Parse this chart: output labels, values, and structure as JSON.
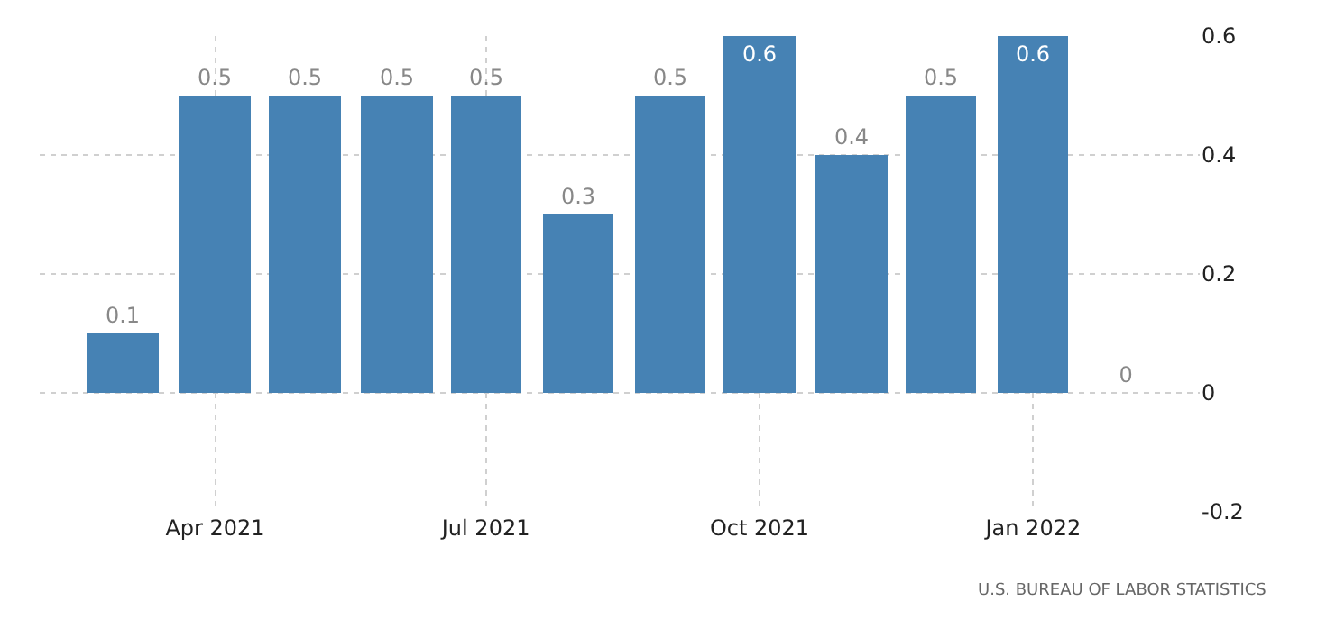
{
  "chart_data": {
    "type": "bar",
    "x": [
      "2021-03-01",
      "2021-04-01",
      "2021-05-01",
      "2021-06-01",
      "2021-07-01",
      "2021-08-01",
      "2021-09-01",
      "2021-10-01",
      "2021-11-01",
      "2021-12-01",
      "2022-01-01",
      "2022-02-01"
    ],
    "values": [
      0.1,
      0.5,
      0.5,
      0.5,
      0.5,
      0.3,
      0.5,
      0.6,
      0.4,
      0.5,
      0.6,
      0
    ],
    "color": "#4682b4",
    "data_labels": true,
    "xlim": [
      "2021-02-01",
      "2022-02-26"
    ],
    "xticks": [
      {
        "value": "2021-04-01",
        "label": "Apr 2021"
      },
      {
        "value": "2021-07-01",
        "label": "Jul 2021"
      },
      {
        "value": "2021-10-01",
        "label": "Oct 2021"
      },
      {
        "value": "2022-01-01",
        "label": "Jan 2022"
      }
    ],
    "ylim": [
      -0.2,
      0.6
    ],
    "yticks": [
      -0.2,
      0,
      0.2,
      0.4,
      0.6
    ],
    "grid": true,
    "annotations": [
      "U.S. BUREAU OF LABOR STATISTICS"
    ]
  }
}
